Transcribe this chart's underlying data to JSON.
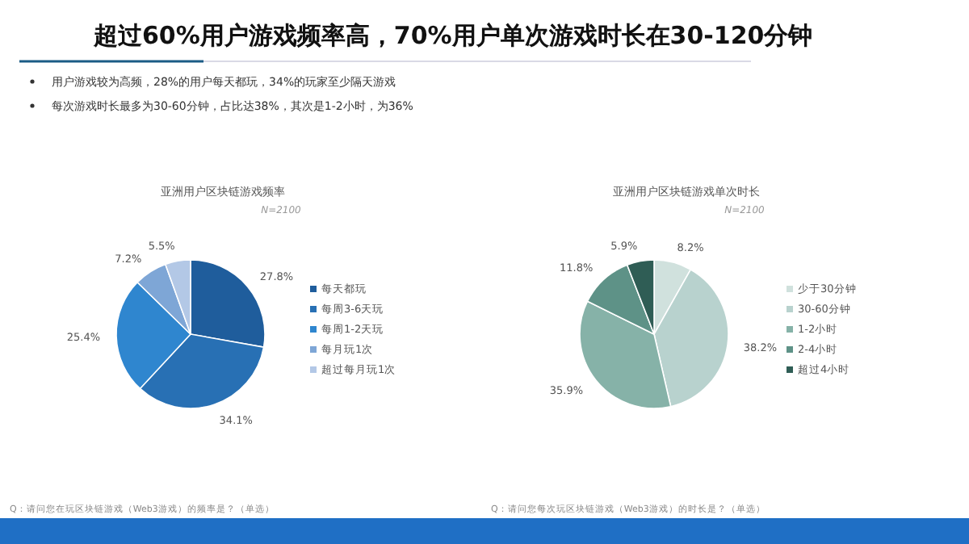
{
  "chart_data": [
    {
      "type": "pie",
      "title": "亚洲用户区块链游戏频率",
      "subtitle": "N=2100",
      "categories": [
        "每天都玩",
        "每周3-6天玩",
        "每周1-2天玩",
        "每月玩1次",
        "超过每月玩1次"
      ],
      "values": [
        27.8,
        34.1,
        25.4,
        7.2,
        5.5
      ],
      "value_labels": [
        "27.8%",
        "34.1%",
        "25.4%",
        "7.2%",
        "5.5%"
      ],
      "colors": [
        "#1f5d9c",
        "#2870b4",
        "#2f86cf",
        "#7ea6d6",
        "#b3c8e6"
      ],
      "legend": "right",
      "annotations": [
        "超过60%用户游戏频率高，70%用户单次游戏时长在30-120分钟",
        "用户游戏较为高频，28%的用户每天都玩，34%的玩家至少隔天游戏",
        "每次游戏时长最多为30-60分钟，占比达38%，其次是1-2小时，为36%",
        "Q：请问您在玩区块链游戏（Web3游戏）的频率是？（单选）"
      ]
    },
    {
      "type": "pie",
      "title": "亚洲用户区块链游戏单次时长",
      "subtitle": "N=2100",
      "categories": [
        "少于30分钟",
        "30-60分钟",
        "1-2小时",
        "2-4小时",
        "超过4小时"
      ],
      "values": [
        8.2,
        38.2,
        35.9,
        11.8,
        5.9
      ],
      "value_labels": [
        "8.2%",
        "38.2%",
        "35.9%",
        "11.8%",
        "5.9%"
      ],
      "colors": [
        "#d0e1dd",
        "#b8d2ce",
        "#86b2a8",
        "#5e9287",
        "#2f5d55"
      ],
      "legend": "right",
      "annotations": [
        "Q：请问您每次玩区块链游戏（Web3游戏）的时长是？（单选）"
      ]
    }
  ]
}
